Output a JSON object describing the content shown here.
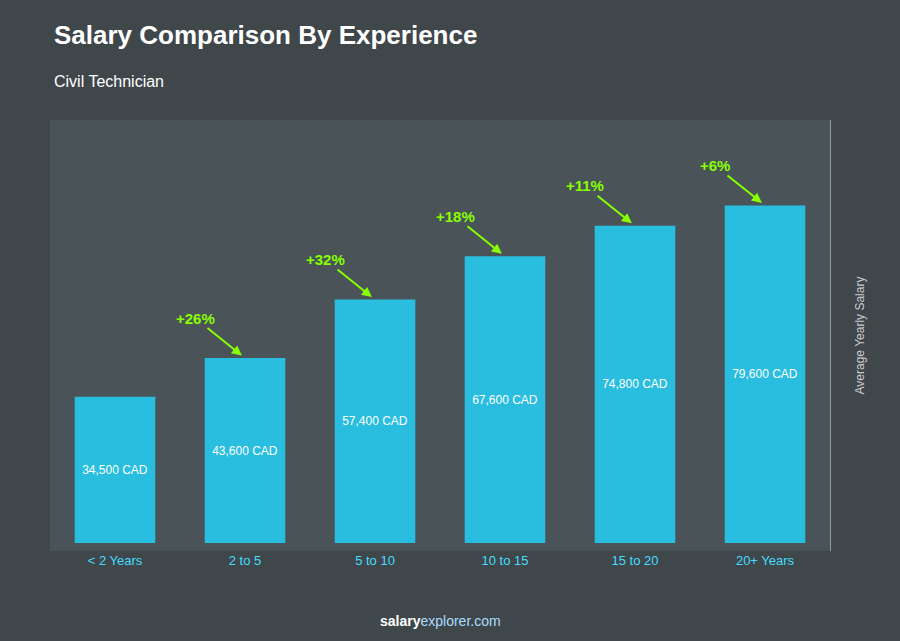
{
  "chart_data": {
    "type": "bar",
    "title": "Salary Comparison By Experience",
    "subtitle": "Civil Technician",
    "ylabel": "Average Yearly Salary",
    "categories": [
      "< 2 Years",
      "2 to 5",
      "5 to 10",
      "10 to 15",
      "15 to 20",
      "20+ Years"
    ],
    "values": [
      34500,
      43600,
      57400,
      67600,
      74800,
      79600
    ],
    "value_labels": [
      "34,500 CAD",
      "43,600 CAD",
      "57,400 CAD",
      "67,600 CAD",
      "74,800 CAD",
      "79,600 CAD"
    ],
    "data_labels": true,
    "color": "#29bde0",
    "ylim": [
      -1900,
      99750
    ],
    "tick_labels": "x",
    "grid": false,
    "annotations": [
      {
        "text": "+26%",
        "color": "#88ff00"
      },
      {
        "text": "+32%",
        "color": "#88ff00"
      },
      {
        "text": "+18%",
        "color": "#88ff00"
      },
      {
        "text": "+11%",
        "color": "#88ff00"
      },
      {
        "text": "+6%",
        "color": "#88ff00"
      }
    ],
    "footer": [
      "salary",
      "explorer.com"
    ]
  }
}
